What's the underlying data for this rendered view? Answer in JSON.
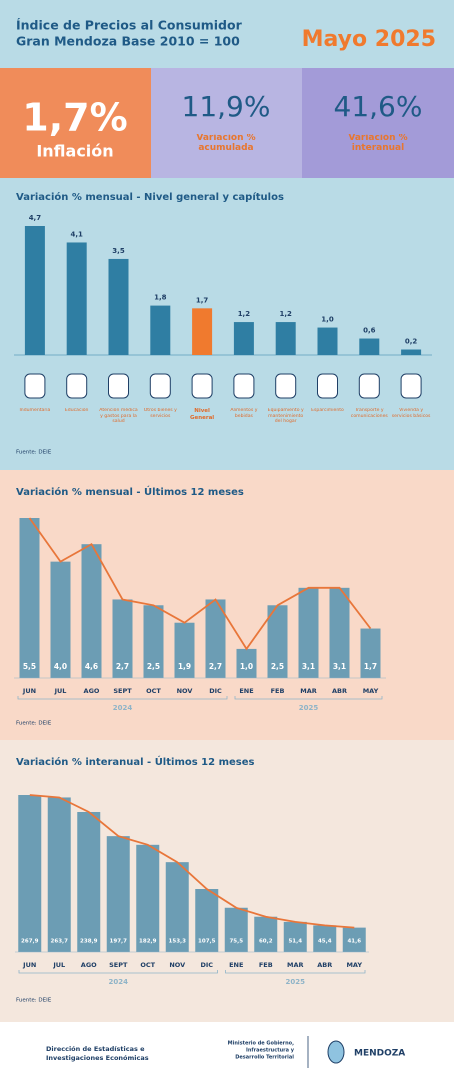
{
  "header": {
    "title": "Índice de Precios al Consumidor",
    "subtitle": "Gran Mendoza Base 2010 = 100",
    "period": "Mayo 2025"
  },
  "kpis": [
    {
      "value": "1,7%",
      "label": "Inflación"
    },
    {
      "value": "11,9%",
      "label": "Variación % acumulada"
    },
    {
      "value": "41,6%",
      "label": "Variación % interanual"
    }
  ],
  "chart_data": [
    {
      "type": "bar",
      "title": "Variación % mensual - Nivel general y capítulos",
      "categories": [
        "Indumentaria",
        "Educación",
        "Atención médica y gastos para la salud",
        "Otros bienes y servicios",
        "Nivel General",
        "Alimentos y bebidas",
        "Equipamiento y mantenimiento del hogar",
        "Esparcimiento",
        "Transporte y comunicaciones",
        "Vivienda y servicios básicos"
      ],
      "values": [
        4.7,
        4.1,
        3.5,
        1.8,
        1.7,
        1.2,
        1.2,
        1.0,
        0.6,
        0.2
      ],
      "value_labels": [
        "4,7",
        "4,1",
        "3,5",
        "1,8",
        "1,7",
        "1,2",
        "1,2",
        "1,0",
        "0,6",
        "0,2"
      ],
      "colors": [
        "#2f7ea3",
        "#2f7ea3",
        "#2f7ea3",
        "#2f7ea3",
        "#f07a2e",
        "#2f7ea3",
        "#2f7ea3",
        "#2f7ea3",
        "#2f7ea3",
        "#2f7ea3"
      ],
      "source": "Fuente: DEIE"
    },
    {
      "type": "bar-line",
      "title": "Variación % mensual - Últimos 12 meses",
      "groups": [
        {
          "name": "2024",
          "categories": [
            "JUN",
            "JUL",
            "AGO",
            "SEPT",
            "OCT",
            "NOV",
            "DIC"
          ]
        },
        {
          "name": "2025",
          "categories": [
            "ENE",
            "FEB",
            "MAR",
            "ABR",
            "MAY"
          ]
        }
      ],
      "values": [
        5.5,
        4.0,
        4.6,
        2.7,
        2.5,
        1.9,
        2.7,
        1.0,
        2.5,
        3.1,
        3.1,
        1.7
      ],
      "value_labels": [
        "5,5",
        "4,0",
        "4,6",
        "2,7",
        "2,5",
        "1,9",
        "2,7",
        "1,0",
        "2,5",
        "3,1",
        "3,1",
        "1,7"
      ],
      "color": "#6c9db4",
      "line_color": "#e8763a",
      "source": "Fuente: DEIE"
    },
    {
      "type": "bar-line",
      "title": "Variación % interanual - Últimos 12 meses",
      "groups": [
        {
          "name": "2024",
          "categories": [
            "JUN",
            "JUL",
            "AGO",
            "SEPT",
            "OCT",
            "NOV",
            "DIC"
          ]
        },
        {
          "name": "2025",
          "categories": [
            "ENE",
            "FEB",
            "MAR",
            "ABR",
            "MAY"
          ]
        }
      ],
      "values": [
        267.9,
        263.7,
        238.9,
        197.7,
        182.9,
        153.3,
        107.5,
        75.5,
        60.2,
        51.4,
        45.4,
        41.6
      ],
      "value_labels": [
        "267,9",
        "263,7",
        "238,9",
        "197,7",
        "182,9",
        "153,3",
        "107,5",
        "75,5",
        "60,2",
        "51,4",
        "45,4",
        "41,6"
      ],
      "color": "#6c9db4",
      "line_color": "#e8763a",
      "source": "Fuente: DEIE"
    }
  ],
  "footer": {
    "left": [
      "Dirección de Estadísticas e",
      "Investigaciones Económicas"
    ],
    "ministry": [
      "Ministerio de Gobierno,",
      "Infraestructura y",
      "Desarrollo Territorial"
    ],
    "brand": "MENDOZA"
  }
}
